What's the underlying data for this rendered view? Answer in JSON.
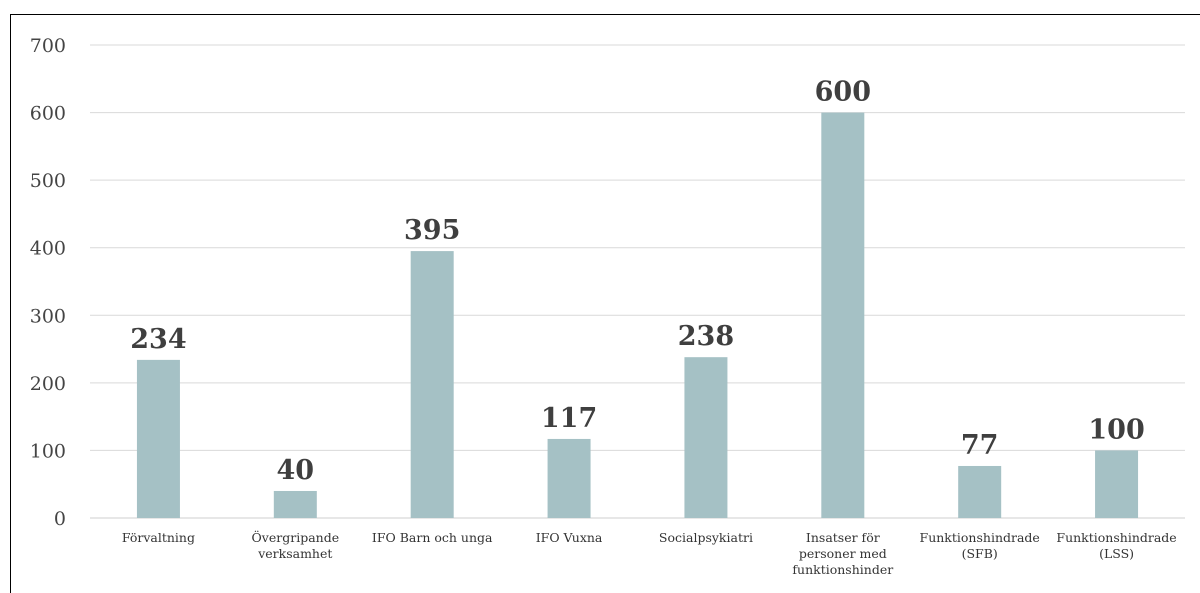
{
  "chart_data": {
    "type": "bar",
    "categories": [
      "Förvaltning",
      "Övergripande verksamhet",
      "IFO Barn och unga",
      "IFO Vuxna",
      "Socialpsykiatri",
      "Insatser för personer med funktionshinder",
      "Funktionshindrade (SFB)",
      "Funktionshindrade (LSS)"
    ],
    "category_lines": [
      [
        "Förvaltning"
      ],
      [
        "Övergripande",
        "verksamhet"
      ],
      [
        "IFO Barn och unga"
      ],
      [
        "IFO Vuxna"
      ],
      [
        "Socialpsykiatri"
      ],
      [
        "Insatser för",
        "personer med",
        "funktionshinder"
      ],
      [
        "Funktionshindrade",
        "(SFB)"
      ],
      [
        "Funktionshindrade",
        "(LSS)"
      ]
    ],
    "values": [
      234,
      40,
      395,
      117,
      238,
      600,
      77,
      100
    ],
    "ylim": [
      0,
      700
    ],
    "yticks": [
      0,
      100,
      200,
      300,
      400,
      500,
      600,
      700
    ],
    "grid": true,
    "data_labels": true,
    "title": "",
    "xlabel": "",
    "ylabel": "",
    "bar_color": "#a5c1c5"
  }
}
